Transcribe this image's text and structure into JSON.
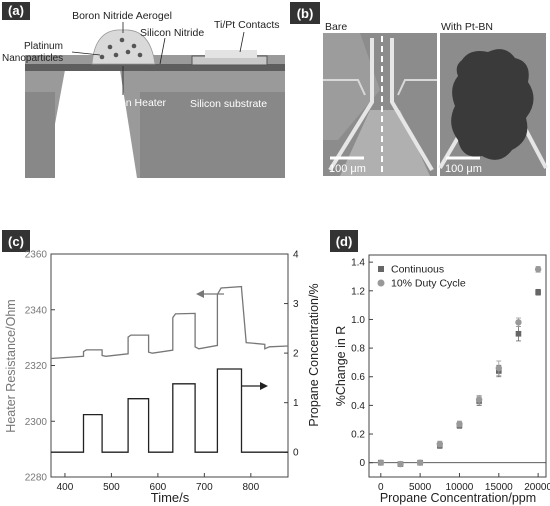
{
  "panels": {
    "a": {
      "letter": "(a)",
      "labels": {
        "aerogel": "Boron Nitride Aerogel",
        "platinum": "Platinum\nNanoparticles",
        "nitride": "Silicon Nitride",
        "contacts": "Ti/Pt Contacts",
        "heater": "Polysilicon Heater",
        "substrate": "Silicon substrate"
      }
    },
    "b": {
      "letter": "(b)",
      "left_label": "Bare",
      "right_label": "With Pt-BN",
      "scale_left": "100 μm",
      "scale_right": "100 μm"
    },
    "c": {
      "letter": "(c)"
    },
    "d": {
      "letter": "(d)"
    }
  },
  "chart_data": [
    {
      "id": "c",
      "type": "line",
      "xlabel": "Time/s",
      "ylabel_left": "Heater Resistance/Ohm",
      "ylabel_right": "Propane Concentration/%",
      "xlim": [
        370,
        880
      ],
      "xticks": [
        400,
        500,
        600,
        700,
        800
      ],
      "ylim_left": [
        2280,
        2360
      ],
      "yticks_left": [
        2280,
        2300,
        2320,
        2340,
        2360
      ],
      "ylim_right": [
        -0.5,
        4
      ],
      "yticks_right": [
        0,
        1,
        2,
        3,
        4
      ],
      "series": [
        {
          "axis": "left",
          "x": [
            370,
            440,
            440,
            446,
            480,
            480,
            488,
            536,
            536,
            542,
            580,
            580,
            588,
            632,
            632,
            638,
            680,
            680,
            688,
            728,
            728,
            736,
            780,
            780,
            790,
            830,
            830,
            840,
            880
          ],
          "y": [
            2322.5,
            2323.3,
            2325.0,
            2325.6,
            2325.6,
            2323.6,
            2323.3,
            2324.2,
            2330.2,
            2330.9,
            2330.9,
            2324.8,
            2324.4,
            2325.5,
            2337.2,
            2338.5,
            2338.7,
            2326.7,
            2326.0,
            2327.2,
            2345.5,
            2347.8,
            2348.3,
            2347.8,
            2328.2,
            2327.6,
            2326.0,
            2326.7,
            2327.0
          ]
        },
        {
          "axis": "right",
          "x": [
            370,
            440,
            440,
            480,
            480,
            536,
            536,
            580,
            580,
            632,
            632,
            680,
            680,
            728,
            728,
            780,
            780,
            830,
            830,
            880
          ],
          "y": [
            0,
            0,
            0.76,
            0.76,
            0,
            0,
            1.08,
            1.08,
            0,
            0,
            1.38,
            1.38,
            0,
            0,
            1.68,
            1.68,
            0,
            0,
            0,
            0
          ]
        }
      ]
    },
    {
      "id": "d",
      "type": "scatter",
      "xlabel": "Propane Concentration/ppm",
      "ylabel": "%Change in R",
      "xlim": [
        -1500,
        21000
      ],
      "xticks": [
        0,
        5000,
        10000,
        15000,
        20000
      ],
      "ylim": [
        -0.1,
        1.45
      ],
      "yticks": [
        0,
        0.2,
        0.4,
        0.6,
        0.8,
        1.0,
        1.2,
        1.4
      ],
      "legend_position": "top-left",
      "series": [
        {
          "name": "Continuous",
          "marker": "square",
          "color": "#666666",
          "x": [
            0,
            2500,
            5000,
            7500,
            10000,
            12500,
            15000,
            17500,
            20000
          ],
          "y": [
            0.0,
            -0.01,
            0.0,
            0.12,
            0.26,
            0.43,
            0.64,
            0.9,
            1.19
          ],
          "err": [
            0.01,
            0.01,
            0.01,
            0.02,
            0.02,
            0.03,
            0.04,
            0.05,
            0.02
          ]
        },
        {
          "name": "10% Duty Cycle",
          "marker": "circle",
          "color": "#999999",
          "x": [
            0,
            2500,
            5000,
            7500,
            10000,
            12500,
            15000,
            17500,
            20000
          ],
          "y": [
            0.0,
            -0.01,
            0.0,
            0.13,
            0.27,
            0.44,
            0.66,
            0.98,
            1.35
          ],
          "err": [
            0.01,
            0.01,
            0.01,
            0.02,
            0.02,
            0.03,
            0.05,
            0.03,
            0.02
          ]
        }
      ]
    }
  ]
}
